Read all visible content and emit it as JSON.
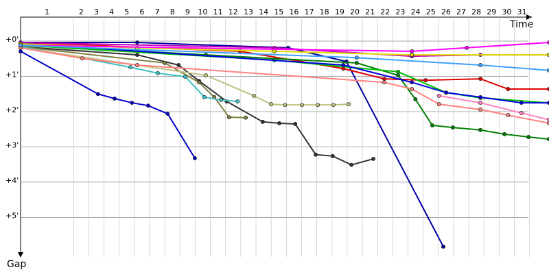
{
  "chart_data": {
    "type": "line",
    "x_label": "Time",
    "y_label": "Gap",
    "xlim": [
      0,
      14.95
    ],
    "ylim": [
      -0.68,
      6.12
    ],
    "xticks": [
      {
        "value": 1.5,
        "label": "1"
      },
      {
        "value": 1.93,
        "label": "2"
      },
      {
        "value": 2.36,
        "label": "3"
      },
      {
        "value": 2.79,
        "label": "4"
      },
      {
        "value": 3.22,
        "label": "5"
      },
      {
        "value": 3.65,
        "label": "6"
      },
      {
        "value": 4.08,
        "label": "7"
      },
      {
        "value": 4.51,
        "label": "8"
      },
      {
        "value": 4.94,
        "label": "9"
      },
      {
        "value": 5.37,
        "label": "10"
      },
      {
        "value": 5.8,
        "label": "11"
      },
      {
        "value": 6.23,
        "label": "12"
      },
      {
        "value": 6.66,
        "label": "13"
      },
      {
        "value": 7.09,
        "label": "14"
      },
      {
        "value": 7.52,
        "label": "15"
      },
      {
        "value": 7.95,
        "label": "16"
      },
      {
        "value": 8.38,
        "label": "17"
      },
      {
        "value": 8.81,
        "label": "18"
      },
      {
        "value": 9.24,
        "label": "19"
      },
      {
        "value": 9.67,
        "label": "20"
      },
      {
        "value": 10.1,
        "label": "21"
      },
      {
        "value": 10.53,
        "label": "22"
      },
      {
        "value": 10.96,
        "label": "23"
      },
      {
        "value": 11.39,
        "label": "24"
      },
      {
        "value": 11.82,
        "label": "25"
      },
      {
        "value": 12.25,
        "label": "26"
      },
      {
        "value": 12.68,
        "label": "27"
      },
      {
        "value": 13.11,
        "label": "28"
      },
      {
        "value": 13.54,
        "label": "29"
      },
      {
        "value": 13.97,
        "label": "30"
      },
      {
        "value": 14.4,
        "label": "31"
      }
    ],
    "yticks": [
      {
        "value": 0,
        "label": "+0'"
      },
      {
        "value": 1,
        "label": "+1'"
      },
      {
        "value": 2,
        "label": "+2'"
      },
      {
        "value": 3,
        "label": "+3'"
      },
      {
        "value": 4,
        "label": "+4'"
      },
      {
        "value": 5,
        "label": "+5'"
      }
    ],
    "grid": true,
    "series": [
      {
        "color": "#0000cc",
        "x": [
          0,
          2.19,
          2.66,
          3.15,
          3.61,
          4.16,
          4.93
        ],
        "values": [
          0.29,
          1.5,
          1.63,
          1.75,
          1.83,
          2.06,
          3.32
        ]
      },
      {
        "color": "#0000a0",
        "x": [
          0,
          3.3,
          7.57,
          9.22,
          11.96
        ],
        "values": [
          0.04,
          0.04,
          0.19,
          0.58,
          5.83
        ]
      },
      {
        "color": "#333333",
        "x": [
          0,
          3.3,
          4.47,
          5.05,
          5.83,
          6.85,
          7.32,
          7.77,
          8.35,
          8.83,
          9.36,
          9.98
        ],
        "values": [
          0.16,
          0.39,
          0.68,
          1.13,
          1.71,
          2.29,
          2.33,
          2.35,
          3.22,
          3.26,
          3.51,
          3.34
        ]
      },
      {
        "color": "#808040",
        "x": [
          0,
          4.08,
          5.05,
          5.48,
          5.9,
          6.37
        ],
        "values": [
          0.16,
          0.62,
          1.17,
          1.59,
          2.16,
          2.17
        ]
      },
      {
        "color": "#40c0c0",
        "x": [
          0,
          3.11,
          3.88,
          4.66,
          5.2,
          5.67,
          6.14
        ],
        "values": [
          0.16,
          0.74,
          0.91,
          1.01,
          1.59,
          1.67,
          1.71
        ]
      },
      {
        "color": "#c0c080",
        "x": [
          0,
          5.24,
          6.6,
          7.09,
          7.48,
          7.96,
          8.41,
          8.85,
          9.28
        ],
        "values": [
          0.19,
          0.97,
          1.55,
          1.79,
          1.81,
          1.81,
          1.81,
          1.81,
          1.79
        ]
      },
      {
        "color": "#e00000",
        "x": [
          0,
          6.21,
          9.13,
          10.29,
          11.46,
          13.01,
          13.79,
          14.95
        ],
        "values": [
          0.04,
          0.29,
          0.78,
          1.07,
          1.11,
          1.07,
          1.36,
          1.36
        ]
      },
      {
        "color": "#008000",
        "x": [
          0,
          5.24,
          9.51,
          10.68,
          11.17,
          11.65,
          12.23,
          13.01,
          13.69,
          14.37,
          14.95
        ],
        "values": [
          0.1,
          0.39,
          0.62,
          0.97,
          1.65,
          2.39,
          2.45,
          2.52,
          2.64,
          2.72,
          2.78
        ]
      },
      {
        "color": "#00c000",
        "x": [
          0,
          7.18,
          10.68,
          12.04,
          13.01,
          14.95
        ],
        "values": [
          0.12,
          0.54,
          0.87,
          1.46,
          1.61,
          1.75
        ]
      },
      {
        "color": "#0000e0",
        "x": [
          0,
          9.13,
          11.07,
          12.04,
          13.01,
          14.17,
          14.95
        ],
        "values": [
          0.06,
          0.68,
          1.17,
          1.46,
          1.59,
          1.75,
          1.75
        ]
      },
      {
        "color": "#ff8080",
        "x": [
          0,
          1.75,
          3.3,
          10.29,
          11.07,
          11.84,
          13.01,
          13.79,
          14.95
        ],
        "values": [
          0.19,
          0.49,
          0.68,
          1.17,
          1.36,
          1.79,
          1.94,
          2.1,
          2.33
        ]
      },
      {
        "color": "#c000c0",
        "x": [
          0,
          7.18,
          11.07,
          13.01,
          14.95
        ],
        "values": [
          0.04,
          0.19,
          0.43,
          0.39,
          0.39
        ]
      },
      {
        "color": "#e0e000",
        "x": [
          0,
          3.3,
          7.18,
          11.07,
          14.95
        ],
        "values": [
          0.08,
          0.19,
          0.29,
          0.39,
          0.39
        ]
      },
      {
        "color": "#ff80c0",
        "x": [
          11.84,
          13.01,
          14.17,
          14.95
        ],
        "values": [
          1.55,
          1.75,
          2.04,
          2.23
        ]
      },
      {
        "color": "#ff00ff",
        "x": [
          0,
          11.07,
          12.62,
          14.95
        ],
        "values": [
          0.12,
          0.29,
          0.19,
          0.04
        ]
      },
      {
        "color": "#40a0ff",
        "x": [
          0,
          9.51,
          13.01,
          14.95
        ],
        "values": [
          0.12,
          0.47,
          0.68,
          0.83
        ]
      }
    ]
  }
}
